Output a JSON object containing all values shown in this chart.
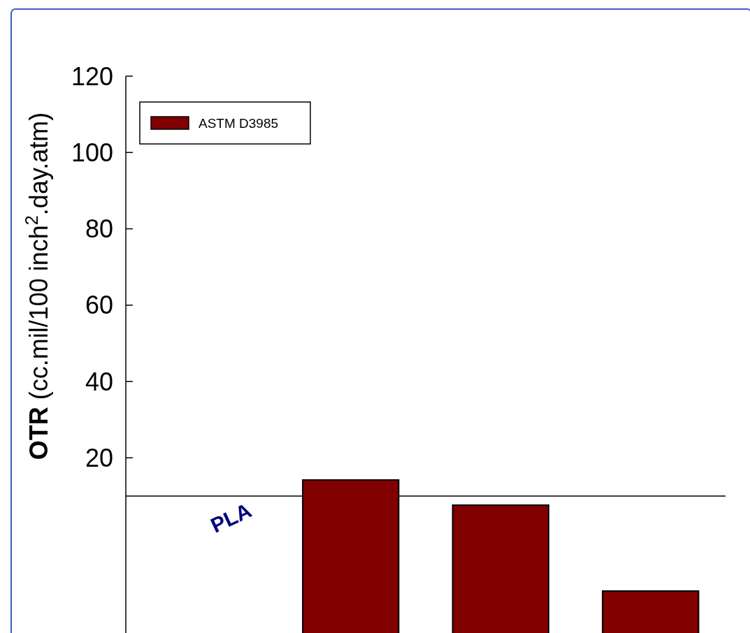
{
  "chart_data": {
    "type": "bar",
    "ylabel": "OTR (cc.mil/100 inch$^{2}$.day.atm)",
    "categories": [
      "PLA",
      null,
      null,
      null
    ],
    "series": [
      {
        "name": "ASTM D3985",
        "color": "#800000",
        "values": [
          null,
          41.2,
          34.6,
          12.1
        ],
        "base": [
          null,
          -27,
          -27,
          -27
        ]
      }
    ],
    "ylim": [
      -27,
      120
    ],
    "yticks": [
      20,
      40,
      60,
      80,
      100,
      120
    ],
    "ref_lines": [
      {
        "axis": "y",
        "value": 10
      }
    ],
    "legend": "top left"
  }
}
